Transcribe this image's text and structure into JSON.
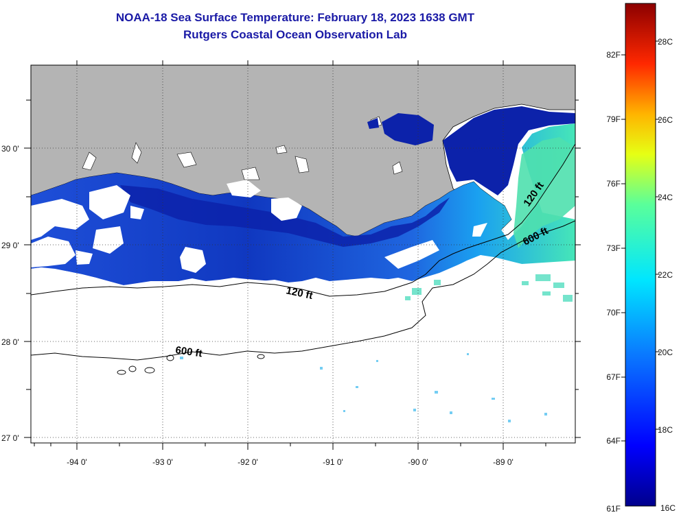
{
  "title": {
    "line1": "NOAA-18 Sea Surface Temperature:  February 18, 2023 1638 GMT",
    "line2": "Rutgers Coastal Ocean Observation Lab"
  },
  "map": {
    "lon_ticks": [
      "-94 0'",
      "-93 0'",
      "-92 0'",
      "-91 0'",
      "-90 0'",
      "-89 0'"
    ],
    "lat_ticks": [
      "30 0'",
      "29 0'",
      "28 0'",
      "27 0'"
    ],
    "contour_labels": [
      "120 ft",
      "600 ft",
      "120 ft",
      "600 ft"
    ],
    "colors": {
      "land": "#b4b4b4",
      "ocean_cold": "#0a1ea8",
      "ocean_mid": "#1e6ee6",
      "ocean_warm": "#3ce6b4",
      "cloud": "#ffffff"
    }
  },
  "colorbar": {
    "fahrenheit": [
      "82F",
      "79F",
      "76F",
      "73F",
      "70F",
      "67F",
      "64F",
      "61F"
    ],
    "celsius": [
      "28C",
      "26C",
      "24C",
      "22C",
      "20C",
      "18C",
      "16C"
    ]
  }
}
